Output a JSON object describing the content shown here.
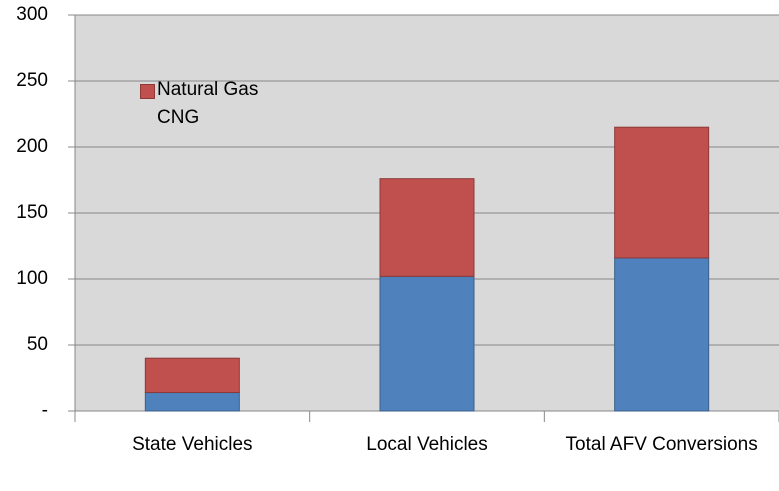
{
  "chart_data": {
    "type": "stacked_bar",
    "categories": [
      "State Vehicles",
      "Local Vehicles",
      "Total AFV Conversions"
    ],
    "series": [
      {
        "color": "#4f81bd",
        "values": [
          14,
          102,
          116
        ]
      },
      {
        "name": "Natural Gas CNG",
        "color": "#c0504d",
        "values": [
          26,
          74,
          99
        ]
      }
    ],
    "ylim": [
      0,
      300
    ],
    "yticks": [
      {
        "value": 0,
        "label": "-"
      },
      50,
      100,
      150,
      200,
      250,
      300
    ],
    "grid": true,
    "legend": "upper left"
  }
}
